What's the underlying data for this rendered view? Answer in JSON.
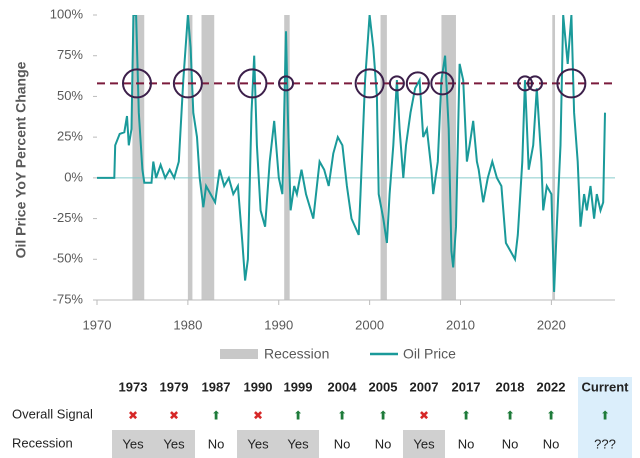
{
  "chart_data": {
    "type": "line",
    "y_axis_label": "Oil Price YoY Percent Change",
    "xlim": [
      1970,
      2027
    ],
    "xticks": [
      1970,
      1980,
      1990,
      2000,
      2010,
      2020
    ],
    "ylim": [
      -75,
      100
    ],
    "yticks": [
      {
        "value": -75,
        "label": "-75%"
      },
      {
        "value": -50,
        "label": "-50%"
      },
      {
        "value": -25,
        "label": "-25%"
      },
      {
        "value": 0,
        "label": "0%"
      },
      {
        "value": 25,
        "label": "25%"
      },
      {
        "value": 50,
        "label": "50%"
      },
      {
        "value": 75,
        "label": "75%"
      },
      {
        "value": 100,
        "label": "100%"
      }
    ],
    "x": [
      1970,
      1971.9,
      1972,
      1972.5,
      1973,
      1973.3,
      1973.5,
      1973.8,
      1974.0,
      1974.3,
      1974.6,
      1975,
      1975.2,
      1976,
      1976.2,
      1976.5,
      1977,
      1977.5,
      1978,
      1978.5,
      1979,
      1979.5,
      1980,
      1980.3,
      1980.6,
      1981,
      1981.3,
      1981.7,
      1982,
      1982.5,
      1983,
      1983.5,
      1984,
      1984.5,
      1985,
      1985.5,
      1986,
      1986.3,
      1986.6,
      1987,
      1987.3,
      1987.6,
      1988,
      1988.5,
      1989,
      1989.5,
      1990,
      1990.4,
      1990.8,
      1991,
      1991.3,
      1991.7,
      1992,
      1992.5,
      1993,
      1993.8,
      1994,
      1994.5,
      1995,
      1995.5,
      1996,
      1996.5,
      1997,
      1997.5,
      1998,
      1998.8,
      1999,
      1999.5,
      2000,
      2000.4,
      2000.8,
      2001,
      2001.5,
      2001.9,
      2002.2,
      2002.6,
      2003,
      2003.3,
      2003.7,
      2004,
      2004.5,
      2005,
      2005.5,
      2005.9,
      2006.3,
      2006.8,
      2007,
      2007.5,
      2007.9,
      2008.3,
      2008.7,
      2009,
      2009.2,
      2009.5,
      2009.9,
      2010.3,
      2010.7,
      2011,
      2011.4,
      2011.8,
      2012,
      2012.5,
      2013,
      2013.5,
      2014,
      2014.5,
      2015,
      2015.5,
      2016,
      2016.3,
      2016.8,
      2017.1,
      2017.5,
      2018,
      2018.4,
      2018.9,
      2019.1,
      2019.5,
      2020,
      2020.3,
      2020.6,
      2021,
      2021.3,
      2021.8,
      2022.2,
      2022.5,
      2022.9,
      2023.2,
      2023.6,
      2023.9,
      2024.3,
      2024.7,
      2025,
      2025.4,
      2025.7,
      2025.9
    ],
    "series": [
      {
        "name": "Oil Price",
        "color": "#1a9a9a",
        "values": [
          0,
          0,
          20,
          27,
          28,
          38,
          20,
          30,
          100,
          100,
          40,
          5,
          -3,
          -3,
          10,
          0,
          8,
          0,
          5,
          0,
          10,
          60,
          100,
          80,
          40,
          25,
          0,
          -18,
          -5,
          -10,
          -15,
          5,
          -5,
          0,
          -10,
          -5,
          -40,
          -63,
          -50,
          40,
          75,
          20,
          -20,
          -30,
          10,
          35,
          0,
          -10,
          90,
          40,
          -20,
          -5,
          -10,
          5,
          -10,
          -25,
          -15,
          10,
          5,
          -5,
          15,
          25,
          20,
          -5,
          -25,
          -35,
          -10,
          60,
          100,
          80,
          50,
          -10,
          -25,
          -40,
          -10,
          20,
          60,
          30,
          0,
          20,
          40,
          55,
          60,
          25,
          30,
          5,
          -10,
          10,
          60,
          75,
          30,
          -45,
          -55,
          -30,
          70,
          60,
          10,
          20,
          35,
          10,
          5,
          -15,
          0,
          10,
          0,
          -5,
          -40,
          -45,
          -50,
          -35,
          10,
          60,
          5,
          20,
          55,
          10,
          -20,
          -5,
          -10,
          -70,
          -30,
          20,
          100,
          70,
          100,
          40,
          10,
          -30,
          -10,
          -20,
          -5,
          -25,
          -10,
          -20,
          -15,
          40
        ]
      }
    ],
    "recessions": {
      "name": "Recession",
      "color": "#c8c8c8",
      "periods": [
        [
          1973.9,
          1975.2
        ],
        [
          1980.0,
          1980.5
        ],
        [
          1981.5,
          1982.9
        ],
        [
          1990.6,
          1991.2
        ],
        [
          2001.2,
          2001.9
        ],
        [
          2007.9,
          2009.5
        ],
        [
          2020.1,
          2020.4
        ]
      ]
    },
    "threshold": 58,
    "threshold_color": "#7b1b3c",
    "signals": {
      "color": "#3c1f4a",
      "x": [
        1974.4,
        1980.0,
        1987.1,
        1990.8,
        2000.0,
        2003.0,
        2005.3,
        2008.0,
        2017.1,
        2018.2,
        2022.2
      ],
      "sizes": [
        14,
        14,
        14,
        7,
        14,
        7,
        11,
        11,
        7,
        7,
        14
      ]
    }
  },
  "table": {
    "columns": [
      "1973",
      "1979",
      "1987",
      "1990",
      "1999",
      "2004",
      "2005",
      "2007",
      "2017",
      "2018",
      "2022",
      "Current"
    ],
    "rows": [
      {
        "label": "Overall Signal",
        "cells": [
          "✖",
          "✖",
          "⬆",
          "✖",
          "⬆",
          "⬆",
          "⬆",
          "✖",
          "⬆",
          "⬆",
          "⬆",
          "⬆"
        ],
        "colors": [
          "#d62828",
          "#d62828",
          "#1e7b3a",
          "#d62828",
          "#1e7b3a",
          "#1e7b3a",
          "#1e7b3a",
          "#d62828",
          "#1e7b3a",
          "#1e7b3a",
          "#1e7b3a",
          "#1e7b3a"
        ]
      },
      {
        "label": "Recession",
        "cells": [
          "Yes",
          "Yes",
          "No",
          "Yes",
          "Yes",
          "No",
          "No",
          "Yes",
          "No",
          "No",
          "No",
          "???"
        ],
        "shaded": [
          true,
          true,
          false,
          true,
          true,
          false,
          false,
          true,
          false,
          false,
          false,
          false
        ]
      }
    ]
  }
}
